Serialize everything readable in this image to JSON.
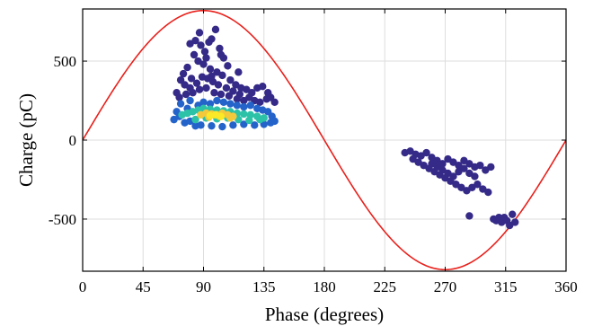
{
  "chart_data": {
    "type": "scatter",
    "xlabel": "Phase (degrees)",
    "ylabel": "Charge (pC)",
    "xlim": [
      0,
      360
    ],
    "ylim": [
      -830,
      830
    ],
    "x_ticks": [
      0,
      45,
      90,
      135,
      180,
      225,
      270,
      315,
      360
    ],
    "x_tick_labels": [
      "0",
      "45",
      "90",
      "135",
      "180",
      "225",
      "270",
      "315",
      "360"
    ],
    "y_ticks": [
      500,
      0,
      -500
    ],
    "y_tick_labels": [
      "500",
      "0",
      "-500"
    ],
    "grid": true,
    "reference_curve": {
      "type": "sine",
      "amplitude": 820,
      "color": "#e8211c"
    },
    "density_colormap": [
      "#352a87",
      "#2463c9",
      "#1aa7d6",
      "#2cc2a8",
      "#a6c44b",
      "#f3c83a",
      "#fbe826"
    ],
    "clusters": [
      {
        "name": "positive-sparse",
        "color_level": 0,
        "points": [
          [
            80,
            610
          ],
          [
            84,
            630
          ],
          [
            88,
            600
          ],
          [
            91,
            560
          ],
          [
            94,
            620
          ],
          [
            96,
            640
          ],
          [
            99,
            700
          ],
          [
            102,
            580
          ],
          [
            105,
            520
          ],
          [
            108,
            470
          ],
          [
            83,
            540
          ],
          [
            86,
            500
          ],
          [
            90,
            480
          ],
          [
            95,
            450
          ],
          [
            100,
            430
          ],
          [
            104,
            410
          ],
          [
            110,
            380
          ],
          [
            114,
            350
          ],
          [
            118,
            330
          ],
          [
            122,
            320
          ],
          [
            126,
            300
          ],
          [
            130,
            330
          ],
          [
            134,
            340
          ],
          [
            138,
            300
          ],
          [
            78,
            460
          ],
          [
            75,
            420
          ],
          [
            73,
            380
          ],
          [
            76,
            350
          ],
          [
            80,
            330
          ],
          [
            85,
            360
          ],
          [
            89,
            400
          ],
          [
            93,
            390
          ],
          [
            97,
            370
          ],
          [
            101,
            350
          ],
          [
            107,
            330
          ],
          [
            112,
            310
          ],
          [
            117,
            290
          ],
          [
            124,
            270
          ],
          [
            128,
            250
          ],
          [
            132,
            240
          ],
          [
            137,
            260
          ],
          [
            140,
            270
          ],
          [
            143,
            240
          ],
          [
            70,
            300
          ],
          [
            72,
            270
          ],
          [
            77,
            290
          ],
          [
            82,
            300
          ],
          [
            87,
            320
          ],
          [
            92,
            330
          ],
          [
            98,
            300
          ],
          [
            103,
            290
          ],
          [
            109,
            280
          ],
          [
            115,
            260
          ],
          [
            120,
            250
          ],
          [
            87,
            680
          ],
          [
            92,
            520
          ],
          [
            103,
            540
          ],
          [
            81,
            390
          ],
          [
            96,
            405
          ],
          [
            116,
            430
          ]
        ]
      },
      {
        "name": "positive-dense-edge",
        "color_level": 1,
        "points": [
          [
            68,
            130
          ],
          [
            70,
            180
          ],
          [
            73,
            230
          ],
          [
            76,
            110
          ],
          [
            78,
            200
          ],
          [
            80,
            250
          ],
          [
            84,
            90
          ],
          [
            86,
            220
          ],
          [
            90,
            240
          ],
          [
            95,
            230
          ],
          [
            100,
            250
          ],
          [
            105,
            240
          ],
          [
            110,
            230
          ],
          [
            115,
            220
          ],
          [
            120,
            210
          ],
          [
            125,
            220
          ],
          [
            130,
            200
          ],
          [
            134,
            190
          ],
          [
            138,
            180
          ],
          [
            141,
            150
          ],
          [
            143,
            120
          ],
          [
            140,
            110
          ],
          [
            135,
            100
          ],
          [
            128,
            95
          ],
          [
            120,
            100
          ],
          [
            112,
            95
          ],
          [
            104,
            85
          ],
          [
            96,
            90
          ],
          [
            88,
            95
          ],
          [
            80,
            120
          ],
          [
            72,
            150
          ]
        ]
      },
      {
        "name": "positive-dense-mid",
        "color_level": 3,
        "points": [
          [
            74,
            160
          ],
          [
            78,
            170
          ],
          [
            82,
            180
          ],
          [
            86,
            190
          ],
          [
            90,
            200
          ],
          [
            95,
            195
          ],
          [
            100,
            190
          ],
          [
            105,
            185
          ],
          [
            110,
            180
          ],
          [
            115,
            170
          ],
          [
            120,
            165
          ],
          [
            125,
            160
          ],
          [
            130,
            150
          ],
          [
            135,
            140
          ],
          [
            84,
            130
          ],
          [
            92,
            140
          ],
          [
            100,
            135
          ],
          [
            108,
            140
          ],
          [
            116,
            130
          ],
          [
            124,
            125
          ],
          [
            132,
            130
          ]
        ]
      },
      {
        "name": "positive-dense-core",
        "color_level": 5,
        "points": [
          [
            88,
            160
          ],
          [
            92,
            170
          ],
          [
            96,
            165
          ],
          [
            100,
            160
          ],
          [
            104,
            170
          ],
          [
            108,
            160
          ],
          [
            112,
            150
          ],
          [
            94,
            145
          ],
          [
            102,
            150
          ],
          [
            110,
            140
          ]
        ]
      },
      {
        "name": "positive-dense-peak",
        "color_level": 6,
        "points": [
          [
            95,
            155
          ],
          [
            99,
            160
          ],
          [
            103,
            150
          ]
        ]
      },
      {
        "name": "negative",
        "color_level": 0,
        "points": [
          [
            240,
            -80
          ],
          [
            244,
            -70
          ],
          [
            248,
            -90
          ],
          [
            252,
            -100
          ],
          [
            256,
            -80
          ],
          [
            260,
            -110
          ],
          [
            264,
            -130
          ],
          [
            268,
            -150
          ],
          [
            272,
            -120
          ],
          [
            276,
            -140
          ],
          [
            280,
            -160
          ],
          [
            284,
            -130
          ],
          [
            288,
            -150
          ],
          [
            292,
            -170
          ],
          [
            296,
            -160
          ],
          [
            300,
            -190
          ],
          [
            246,
            -120
          ],
          [
            250,
            -140
          ],
          [
            254,
            -160
          ],
          [
            258,
            -180
          ],
          [
            262,
            -200
          ],
          [
            266,
            -220
          ],
          [
            270,
            -240
          ],
          [
            274,
            -260
          ],
          [
            278,
            -280
          ],
          [
            282,
            -300
          ],
          [
            286,
            -320
          ],
          [
            290,
            -300
          ],
          [
            294,
            -280
          ],
          [
            298,
            -310
          ],
          [
            302,
            -330
          ],
          [
            260,
            -150
          ],
          [
            264,
            -170
          ],
          [
            268,
            -190
          ],
          [
            272,
            -210
          ],
          [
            276,
            -230
          ],
          [
            280,
            -200
          ],
          [
            284,
            -180
          ],
          [
            288,
            -210
          ],
          [
            292,
            -230
          ],
          [
            288,
            -480
          ],
          [
            304,
            -170
          ],
          [
            306,
            -500
          ],
          [
            310,
            -490
          ],
          [
            312,
            -520
          ],
          [
            314,
            -490
          ],
          [
            316,
            -510
          ],
          [
            318,
            -540
          ],
          [
            320,
            -470
          ],
          [
            308,
            -510
          ],
          [
            322,
            -520
          ]
        ]
      }
    ]
  }
}
